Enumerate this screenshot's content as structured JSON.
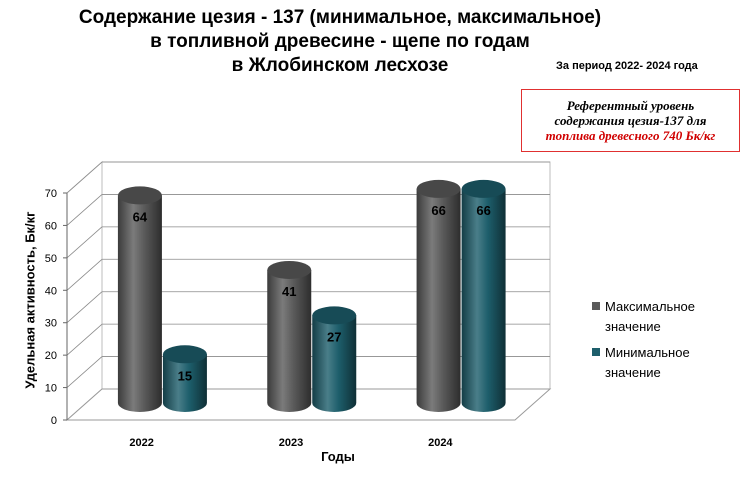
{
  "title": {
    "line1": "Содержание цезия - 137 (минимальное, максимальное)",
    "line2": "в топливной древесине - щепе по годам",
    "line3": "в Жлобинском лесхозе"
  },
  "period": "За период 2022- 2024 года",
  "reference": {
    "line1": "Референтный уровень",
    "line2": "содержания цезия-137 для",
    "line3": "топлива древесного  740 Бк/кг"
  },
  "colors": {
    "max": "#5a5a5a",
    "min": "#1d5e6b"
  },
  "chart_data": {
    "type": "bar",
    "categories": [
      "2022",
      "2023",
      "2024"
    ],
    "series": [
      {
        "name": "Максимальное значение",
        "values": [
          64,
          41,
          66
        ]
      },
      {
        "name": "Минимальное значение",
        "values": [
          15,
          27,
          66
        ]
      }
    ],
    "xlabel": "Годы",
    "ylabel": "Удельная активность, Бк/кг",
    "ylim": [
      0,
      70
    ],
    "yticks": [
      0,
      10,
      20,
      30,
      40,
      50,
      60,
      70
    ],
    "grid": true,
    "legend": "right"
  }
}
